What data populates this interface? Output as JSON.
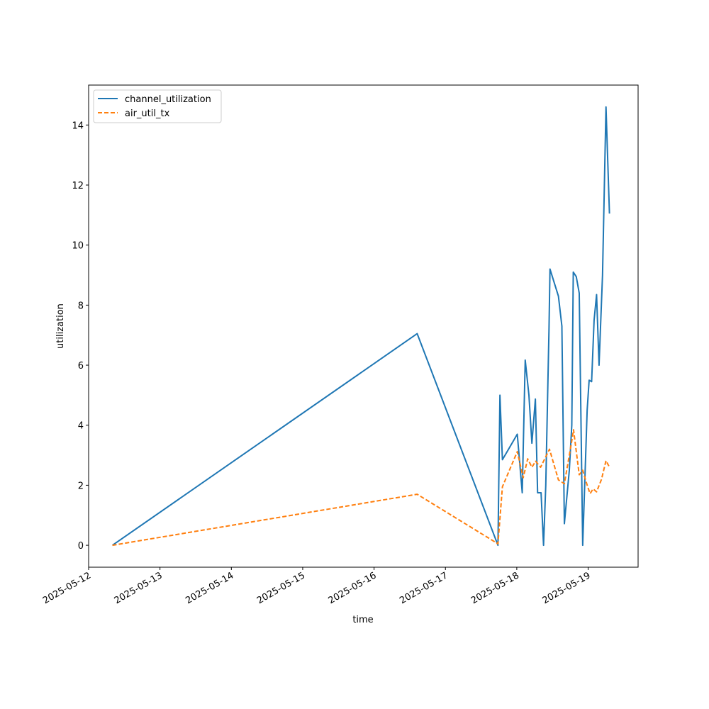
{
  "chart_data": {
    "type": "line",
    "xlabel": "time",
    "ylabel": "utilization",
    "xlim": [
      "2025-05-12 00:00",
      "2025-05-19 16:48"
    ],
    "ylim": [
      -0.73,
      15.33
    ],
    "x_ticks": [
      "2025-05-12",
      "2025-05-13",
      "2025-05-14",
      "2025-05-15",
      "2025-05-16",
      "2025-05-17",
      "2025-05-18",
      "2025-05-19"
    ],
    "y_ticks": [
      0,
      2,
      4,
      6,
      8,
      10,
      12,
      14
    ],
    "grid": false,
    "legend_position": "upper-left",
    "series": [
      {
        "name": "channel_utilization",
        "color": "#1f77b4",
        "style": "solid",
        "points": [
          [
            "2025-05-12 08:00",
            0.0
          ],
          [
            "2025-05-16 14:30",
            7.05
          ],
          [
            "2025-05-17 17:40",
            0.0
          ],
          [
            "2025-05-17 18:20",
            5.0
          ],
          [
            "2025-05-17 19:10",
            2.85
          ],
          [
            "2025-05-18 00:10",
            3.7
          ],
          [
            "2025-05-18 01:50",
            1.75
          ],
          [
            "2025-05-18 02:50",
            6.17
          ],
          [
            "2025-05-18 04:05",
            5.0
          ],
          [
            "2025-05-18 05:05",
            3.4
          ],
          [
            "2025-05-18 06:15",
            4.87
          ],
          [
            "2025-05-18 07:00",
            1.75
          ],
          [
            "2025-05-18 08:10",
            1.75
          ],
          [
            "2025-05-18 09:00",
            0.0
          ],
          [
            "2025-05-18 09:45",
            2.0
          ],
          [
            "2025-05-18 10:50",
            7.2
          ],
          [
            "2025-05-18 11:10",
            9.2
          ],
          [
            "2025-05-18 14:00",
            8.3
          ],
          [
            "2025-05-18 15:10",
            7.3
          ],
          [
            "2025-05-18 16:00",
            0.72
          ],
          [
            "2025-05-18 17:40",
            2.5
          ],
          [
            "2025-05-18 18:30",
            4.0
          ],
          [
            "2025-05-18 19:00",
            9.1
          ],
          [
            "2025-05-18 20:00",
            8.95
          ],
          [
            "2025-05-18 21:00",
            8.4
          ],
          [
            "2025-05-18 22:10",
            0.0
          ],
          [
            "2025-05-18 23:40",
            4.5
          ],
          [
            "2025-05-19 00:20",
            5.5
          ],
          [
            "2025-05-19 01:10",
            5.45
          ],
          [
            "2025-05-19 02:00",
            7.5
          ],
          [
            "2025-05-19 02:50",
            8.35
          ],
          [
            "2025-05-19 03:40",
            6.0
          ],
          [
            "2025-05-19 04:50",
            9.0
          ],
          [
            "2025-05-19 06:00",
            14.6
          ],
          [
            "2025-05-19 07:10",
            11.05
          ]
        ]
      },
      {
        "name": "air_util_tx",
        "color": "#ff7f0e",
        "style": "dashed",
        "points": [
          [
            "2025-05-12 08:00",
            0.0
          ],
          [
            "2025-05-16 14:30",
            1.7
          ],
          [
            "2025-05-17 17:40",
            0.05
          ],
          [
            "2025-05-17 19:10",
            1.95
          ],
          [
            "2025-05-18 00:10",
            3.12
          ],
          [
            "2025-05-18 02:10",
            2.25
          ],
          [
            "2025-05-18 03:40",
            2.88
          ],
          [
            "2025-05-18 05:05",
            2.6
          ],
          [
            "2025-05-18 06:20",
            2.8
          ],
          [
            "2025-05-18 08:00",
            2.6
          ],
          [
            "2025-05-18 11:00",
            3.2
          ],
          [
            "2025-05-18 14:00",
            2.18
          ],
          [
            "2025-05-18 16:00",
            2.05
          ],
          [
            "2025-05-18 18:30",
            3.48
          ],
          [
            "2025-05-18 19:05",
            3.85
          ],
          [
            "2025-05-18 21:00",
            2.35
          ],
          [
            "2025-05-18 22:10",
            2.5
          ],
          [
            "2025-05-18 23:50",
            1.95
          ],
          [
            "2025-05-19 00:40",
            1.72
          ],
          [
            "2025-05-19 01:40",
            1.88
          ],
          [
            "2025-05-19 02:50",
            1.78
          ],
          [
            "2025-05-19 04:30",
            2.2
          ],
          [
            "2025-05-19 06:00",
            2.82
          ],
          [
            "2025-05-19 07:10",
            2.6
          ]
        ]
      }
    ]
  }
}
